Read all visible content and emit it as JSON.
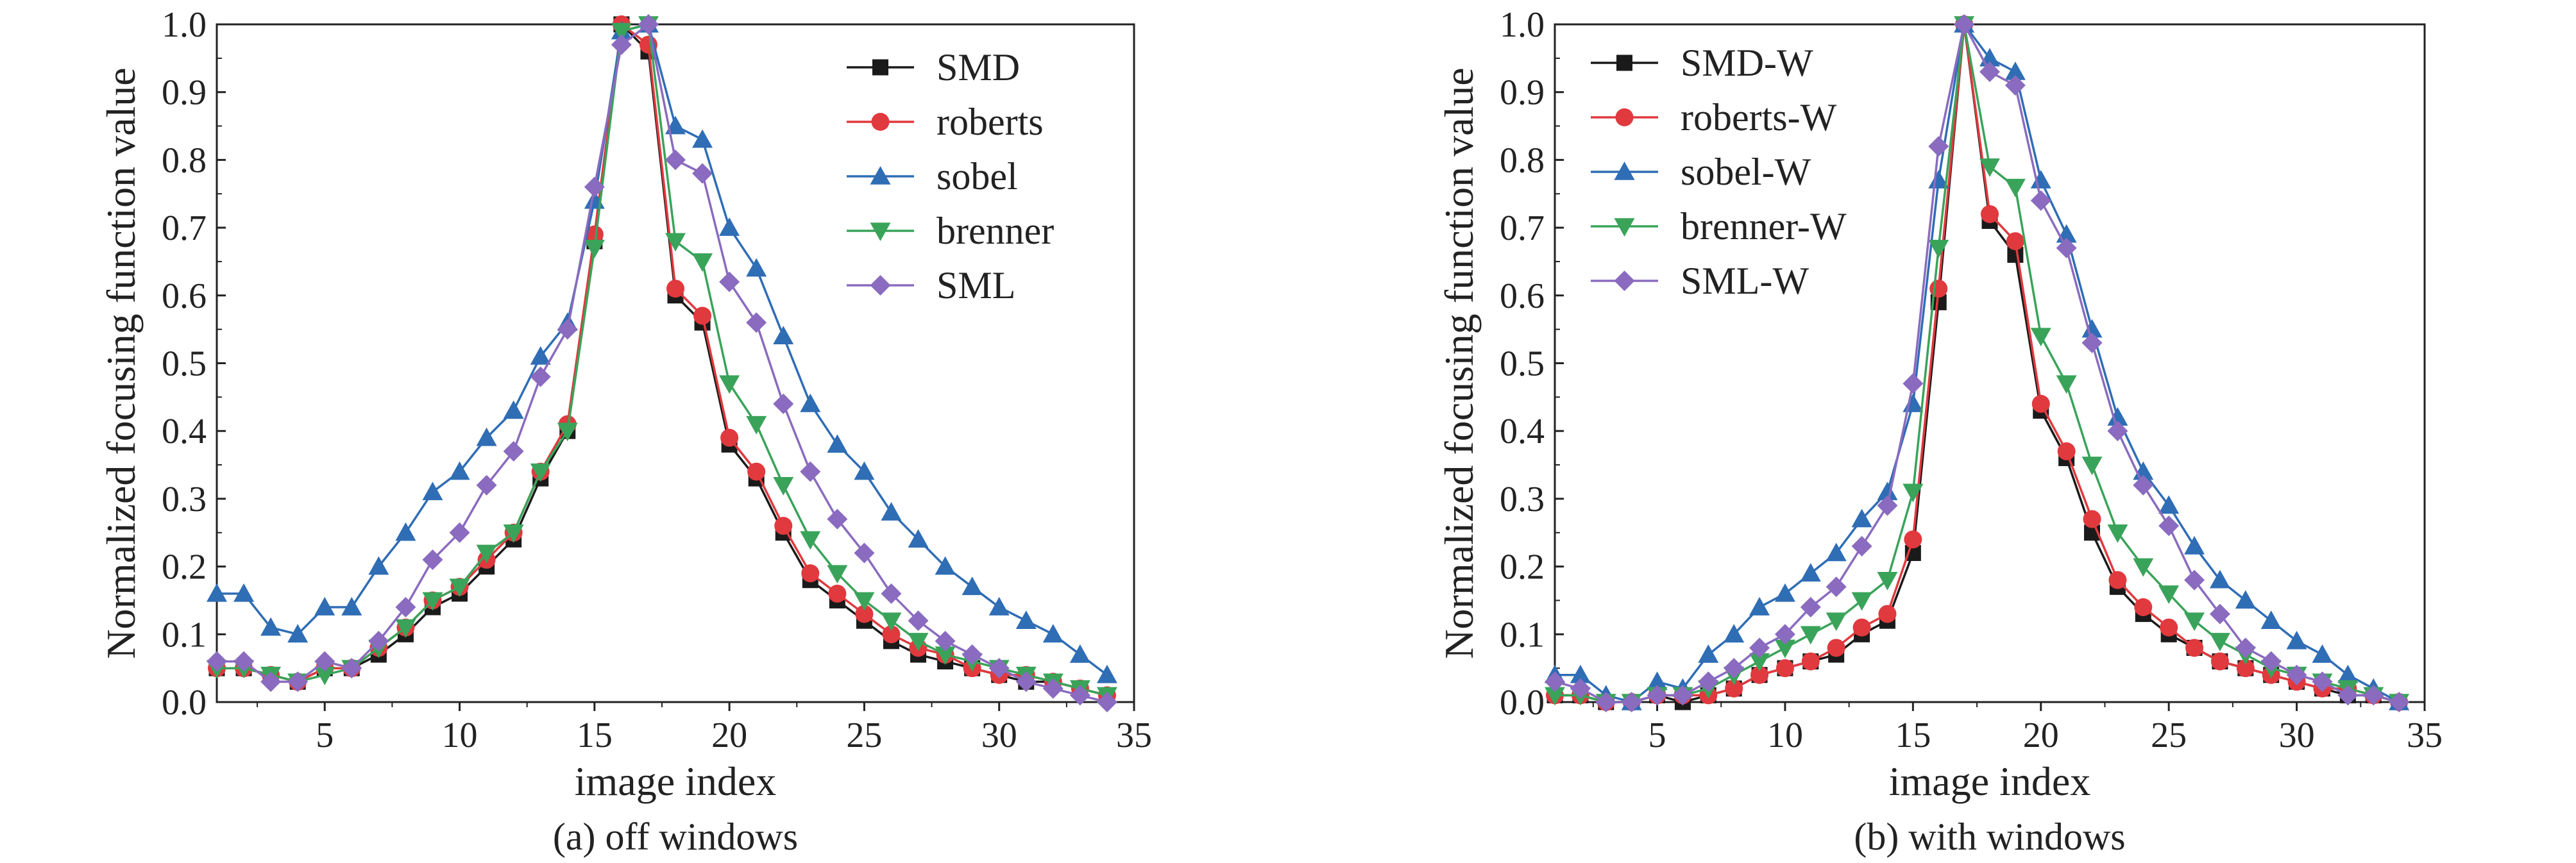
{
  "chart_data": [
    {
      "type": "line",
      "caption": "(a) off windows",
      "xlabel": "image index",
      "ylabel": "Normalized focusing function value",
      "xlim": [
        1,
        35
      ],
      "ylim": [
        0,
        1.0
      ],
      "xticks": [
        "5",
        "10",
        "15",
        "20",
        "25",
        "30",
        "35"
      ],
      "yticks": [
        "0.0",
        "0.1",
        "0.2",
        "0.3",
        "0.4",
        "0.5",
        "0.6",
        "0.7",
        "0.8",
        "0.9",
        "1.0"
      ],
      "legend_position": "top-right",
      "x": [
        1,
        2,
        3,
        4,
        5,
        6,
        7,
        8,
        9,
        10,
        11,
        12,
        13,
        14,
        15,
        16,
        17,
        18,
        19,
        20,
        21,
        22,
        23,
        24,
        25,
        26,
        27,
        28,
        29,
        30,
        31,
        32,
        33,
        34
      ],
      "series": [
        {
          "name": "SMD",
          "color": "#1a1a1a",
          "marker": "square",
          "values": [
            0.05,
            0.05,
            0.04,
            0.03,
            0.05,
            0.05,
            0.07,
            0.1,
            0.14,
            0.16,
            0.2,
            0.24,
            0.33,
            0.4,
            0.68,
            1.0,
            0.96,
            0.6,
            0.56,
            0.38,
            0.33,
            0.25,
            0.18,
            0.15,
            0.12,
            0.09,
            0.07,
            0.06,
            0.05,
            0.04,
            0.03,
            0.03,
            0.02,
            0.01
          ]
        },
        {
          "name": "roberts",
          "color": "#e0393e",
          "marker": "circle",
          "values": [
            0.05,
            0.05,
            0.04,
            0.03,
            0.05,
            0.05,
            0.08,
            0.11,
            0.15,
            0.17,
            0.21,
            0.25,
            0.34,
            0.41,
            0.69,
            1.0,
            0.97,
            0.61,
            0.57,
            0.39,
            0.34,
            0.26,
            0.19,
            0.16,
            0.13,
            0.1,
            0.08,
            0.07,
            0.05,
            0.04,
            0.04,
            0.03,
            0.02,
            0.01
          ]
        },
        {
          "name": "sobel",
          "color": "#2f6db5",
          "marker": "triangle-up",
          "values": [
            0.16,
            0.16,
            0.11,
            0.1,
            0.14,
            0.14,
            0.2,
            0.25,
            0.31,
            0.34,
            0.39,
            0.43,
            0.51,
            0.56,
            0.74,
            0.99,
            1.0,
            0.85,
            0.83,
            0.7,
            0.64,
            0.54,
            0.44,
            0.38,
            0.34,
            0.28,
            0.24,
            0.2,
            0.17,
            0.14,
            0.12,
            0.1,
            0.07,
            0.04
          ]
        },
        {
          "name": "brenner",
          "color": "#3aa35a",
          "marker": "triangle-down",
          "values": [
            0.05,
            0.05,
            0.04,
            0.03,
            0.04,
            0.05,
            0.08,
            0.11,
            0.15,
            0.17,
            0.22,
            0.25,
            0.34,
            0.4,
            0.67,
            0.99,
            1.0,
            0.68,
            0.65,
            0.47,
            0.41,
            0.32,
            0.24,
            0.19,
            0.15,
            0.12,
            0.09,
            0.07,
            0.06,
            0.05,
            0.04,
            0.03,
            0.02,
            0.01
          ]
        },
        {
          "name": "SML",
          "color": "#8a6bbf",
          "marker": "diamond",
          "values": [
            0.06,
            0.06,
            0.03,
            0.03,
            0.06,
            0.05,
            0.09,
            0.14,
            0.21,
            0.25,
            0.32,
            0.37,
            0.48,
            0.55,
            0.76,
            0.97,
            1.0,
            0.8,
            0.78,
            0.62,
            0.56,
            0.44,
            0.34,
            0.27,
            0.22,
            0.16,
            0.12,
            0.09,
            0.07,
            0.05,
            0.03,
            0.02,
            0.01,
            0.0
          ]
        }
      ]
    },
    {
      "type": "line",
      "caption": "(b) with windows",
      "xlabel": "image index",
      "ylabel": "Normalized focusing function value",
      "xlim": [
        1,
        35
      ],
      "ylim": [
        0,
        1.0
      ],
      "xticks": [
        "5",
        "10",
        "15",
        "20",
        "25",
        "30",
        "35"
      ],
      "yticks": [
        "0.0",
        "0.1",
        "0.2",
        "0.3",
        "0.4",
        "0.5",
        "0.6",
        "0.7",
        "0.8",
        "0.9",
        "1.0"
      ],
      "legend_position": "top-left",
      "x": [
        1,
        2,
        3,
        4,
        5,
        6,
        7,
        8,
        9,
        10,
        11,
        12,
        13,
        14,
        15,
        16,
        17,
        18,
        19,
        20,
        21,
        22,
        23,
        24,
        25,
        26,
        27,
        28,
        29,
        30,
        31,
        32,
        33,
        34
      ],
      "series": [
        {
          "name": "SMD-W",
          "color": "#1a1a1a",
          "marker": "square",
          "values": [
            0.01,
            0.01,
            0.0,
            0.0,
            0.01,
            0.0,
            0.01,
            0.02,
            0.04,
            0.05,
            0.06,
            0.07,
            0.1,
            0.12,
            0.22,
            0.59,
            1.0,
            0.71,
            0.66,
            0.43,
            0.36,
            0.25,
            0.17,
            0.13,
            0.1,
            0.08,
            0.06,
            0.05,
            0.04,
            0.03,
            0.02,
            0.01,
            0.01,
            0.0
          ]
        },
        {
          "name": "roberts-W",
          "color": "#e0393e",
          "marker": "circle",
          "values": [
            0.01,
            0.01,
            0.0,
            0.0,
            0.01,
            0.01,
            0.01,
            0.02,
            0.04,
            0.05,
            0.06,
            0.08,
            0.11,
            0.13,
            0.24,
            0.61,
            1.0,
            0.72,
            0.68,
            0.44,
            0.37,
            0.27,
            0.18,
            0.14,
            0.11,
            0.08,
            0.06,
            0.05,
            0.04,
            0.03,
            0.02,
            0.02,
            0.01,
            0.0
          ]
        },
        {
          "name": "sobel-W",
          "color": "#2f6db5",
          "marker": "triangle-up",
          "values": [
            0.04,
            0.04,
            0.01,
            0.0,
            0.03,
            0.02,
            0.07,
            0.1,
            0.14,
            0.16,
            0.19,
            0.22,
            0.27,
            0.31,
            0.44,
            0.77,
            1.0,
            0.95,
            0.93,
            0.77,
            0.69,
            0.55,
            0.42,
            0.34,
            0.29,
            0.23,
            0.18,
            0.15,
            0.12,
            0.09,
            0.07,
            0.04,
            0.02,
            0.0
          ]
        },
        {
          "name": "brenner-W",
          "color": "#3aa35a",
          "marker": "triangle-down",
          "values": [
            0.01,
            0.01,
            0.0,
            0.0,
            0.01,
            0.01,
            0.02,
            0.04,
            0.06,
            0.08,
            0.1,
            0.12,
            0.15,
            0.18,
            0.31,
            0.67,
            1.0,
            0.79,
            0.76,
            0.54,
            0.47,
            0.35,
            0.25,
            0.2,
            0.16,
            0.12,
            0.09,
            0.07,
            0.05,
            0.04,
            0.03,
            0.02,
            0.01,
            0.0
          ]
        },
        {
          "name": "SML-W",
          "color": "#8a6bbf",
          "marker": "diamond",
          "values": [
            0.03,
            0.02,
            0.0,
            0.0,
            0.01,
            0.01,
            0.03,
            0.05,
            0.08,
            0.1,
            0.14,
            0.17,
            0.23,
            0.29,
            0.47,
            0.82,
            1.0,
            0.93,
            0.91,
            0.74,
            0.67,
            0.53,
            0.4,
            0.32,
            0.26,
            0.18,
            0.13,
            0.08,
            0.06,
            0.04,
            0.03,
            0.01,
            0.01,
            0.0
          ]
        }
      ]
    }
  ]
}
